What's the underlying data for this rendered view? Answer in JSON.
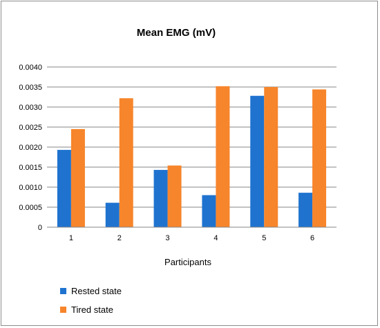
{
  "chart_data": {
    "type": "bar",
    "title": "Mean EMG (mV)",
    "xlabel": "Participants",
    "ylabel": "",
    "ylim": [
      0,
      0.004
    ],
    "yticks": [
      "0",
      "0.0005",
      "0.0010",
      "0.0015",
      "0.0020",
      "0.0025",
      "0.0030",
      "0.0035",
      "0.0040"
    ],
    "ytick_values": [
      0,
      0.0005,
      0.001,
      0.0015,
      0.002,
      0.0025,
      0.003,
      0.0035,
      0.004
    ],
    "categories": [
      "1",
      "2",
      "3",
      "4",
      "5",
      "6"
    ],
    "series": [
      {
        "name": "Rested state",
        "color": "#1F73CF",
        "values": [
          0.00193,
          0.00061,
          0.00143,
          0.0008,
          0.00328,
          0.00086
        ]
      },
      {
        "name": "Tired state",
        "color": "#F7852B",
        "values": [
          0.00245,
          0.00322,
          0.00154,
          0.00352,
          0.0035,
          0.00344
        ]
      }
    ],
    "grid": true,
    "legend_position": "bottom-left"
  }
}
